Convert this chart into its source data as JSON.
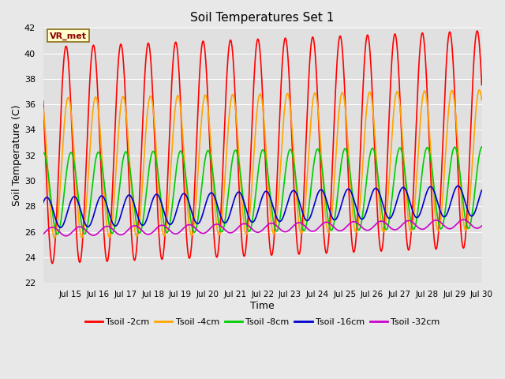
{
  "title": "Soil Temperatures Set 1",
  "xlabel": "Time",
  "ylabel": "Soil Temperature (C)",
  "ylim": [
    22,
    42
  ],
  "yticks": [
    22,
    24,
    26,
    28,
    30,
    32,
    34,
    36,
    38,
    40,
    42
  ],
  "xlim_days": [
    14.0,
    30.0
  ],
  "xtick_labels": [
    "Jul 15",
    "Jul 16",
    "Jul 17",
    "Jul 18",
    "Jul 19",
    "Jul 20",
    "Jul 21",
    "Jul 22",
    "Jul 23",
    "Jul 24",
    "Jul 25",
    "Jul 26",
    "Jul 27",
    "Jul 28",
    "Jul 29",
    "Jul 30"
  ],
  "xtick_positions": [
    15,
    16,
    17,
    18,
    19,
    20,
    21,
    22,
    23,
    24,
    25,
    26,
    27,
    28,
    29,
    30
  ],
  "series": [
    {
      "name": "Tsoil -2cm",
      "color": "#ff0000",
      "linewidth": 1.2,
      "mean": 32.0,
      "amp": 8.5,
      "phase_delay": 0.0,
      "trend": 0.08
    },
    {
      "name": "Tsoil -4cm",
      "color": "#ffa500",
      "linewidth": 1.2,
      "mean": 31.0,
      "amp": 5.5,
      "phase_delay": 0.08,
      "trend": 0.04
    },
    {
      "name": "Tsoil -8cm",
      "color": "#00cc00",
      "linewidth": 1.2,
      "mean": 29.0,
      "amp": 3.2,
      "phase_delay": 0.18,
      "trend": 0.03
    },
    {
      "name": "Tsoil -16cm",
      "color": "#0000cc",
      "linewidth": 1.2,
      "mean": 27.5,
      "amp": 1.2,
      "phase_delay": 0.3,
      "trend": 0.06
    },
    {
      "name": "Tsoil -32cm",
      "color": "#cc00cc",
      "linewidth": 1.2,
      "mean": 26.0,
      "amp": 0.35,
      "phase_delay": 0.5,
      "trend": 0.04
    }
  ],
  "legend_label": "VR_met",
  "outer_bg_color": "#e8e8e8",
  "plot_bg_color": "#e0e0e0",
  "grid_color": "#ffffff",
  "figsize": [
    6.4,
    4.8
  ],
  "dpi": 100
}
